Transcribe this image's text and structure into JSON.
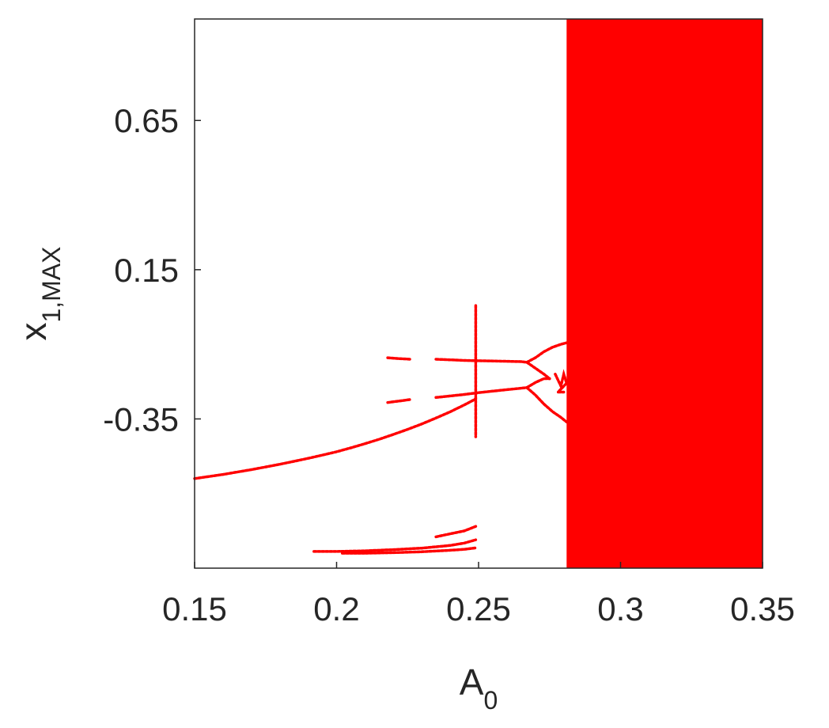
{
  "chart_data": {
    "type": "scatter",
    "title": "",
    "xlabel": {
      "main": "A",
      "sub": "0"
    },
    "ylabel": {
      "main": "x",
      "sub": "1,MAX"
    },
    "xlim": [
      0.15,
      0.35
    ],
    "ylim": [
      -0.85,
      0.99
    ],
    "xticks": [
      0.15,
      0.2,
      0.25,
      0.3,
      0.35
    ],
    "xtick_labels": [
      "0.15",
      "0.2",
      "0.25",
      "0.3",
      "0.35"
    ],
    "yticks": [
      -0.35,
      0.15,
      0.65
    ],
    "ytick_labels": [
      "-0.35",
      "0.15",
      "0.65"
    ],
    "grid": false,
    "legend": "none",
    "color": "#ff0000",
    "chaotic_band": {
      "x": [
        0.281,
        0.35
      ],
      "y": [
        -0.85,
        0.99
      ]
    },
    "series": [
      {
        "points": [
          [
            0.15,
            -0.55
          ],
          [
            0.155,
            -0.543
          ],
          [
            0.16,
            -0.536
          ],
          [
            0.165,
            -0.528
          ],
          [
            0.17,
            -0.52
          ],
          [
            0.175,
            -0.511
          ],
          [
            0.18,
            -0.502
          ],
          [
            0.185,
            -0.492
          ],
          [
            0.19,
            -0.482
          ],
          [
            0.195,
            -0.471
          ],
          [
            0.2,
            -0.46
          ],
          [
            0.205,
            -0.447
          ],
          [
            0.21,
            -0.433
          ],
          [
            0.215,
            -0.418
          ],
          [
            0.22,
            -0.402
          ],
          [
            0.225,
            -0.385
          ],
          [
            0.23,
            -0.367
          ],
          [
            0.235,
            -0.347
          ],
          [
            0.24,
            -0.326
          ],
          [
            0.245,
            -0.303
          ],
          [
            0.249,
            -0.283
          ]
        ]
      },
      {
        "points": [
          [
            0.218,
            -0.145
          ],
          [
            0.222,
            -0.148
          ],
          [
            0.226,
            -0.15
          ]
        ]
      },
      {
        "points": [
          [
            0.218,
            -0.295
          ],
          [
            0.222,
            -0.29
          ],
          [
            0.226,
            -0.285
          ]
        ]
      },
      {
        "points": [
          [
            0.235,
            -0.15
          ],
          [
            0.24,
            -0.152
          ],
          [
            0.245,
            -0.154
          ],
          [
            0.25,
            -0.155
          ],
          [
            0.255,
            -0.156
          ],
          [
            0.26,
            -0.157
          ],
          [
            0.265,
            -0.158
          ],
          [
            0.267,
            -0.16
          ]
        ]
      },
      {
        "points": [
          [
            0.235,
            -0.278
          ],
          [
            0.24,
            -0.273
          ],
          [
            0.245,
            -0.268
          ],
          [
            0.25,
            -0.262
          ],
          [
            0.255,
            -0.257
          ],
          [
            0.26,
            -0.252
          ],
          [
            0.265,
            -0.247
          ],
          [
            0.267,
            -0.245
          ]
        ]
      },
      {
        "points": [
          [
            0.249,
            0.03
          ],
          [
            0.249,
            0.0
          ],
          [
            0.249,
            -0.02
          ],
          [
            0.249,
            -0.15
          ],
          [
            0.249,
            -0.17
          ],
          [
            0.249,
            -0.19
          ],
          [
            0.249,
            -0.21
          ],
          [
            0.249,
            -0.23
          ],
          [
            0.249,
            -0.25
          ],
          [
            0.249,
            -0.27
          ],
          [
            0.249,
            -0.29
          ],
          [
            0.249,
            -0.31
          ],
          [
            0.249,
            -0.33
          ],
          [
            0.249,
            -0.35
          ],
          [
            0.249,
            -0.37
          ],
          [
            0.249,
            -0.39
          ],
          [
            0.249,
            -0.41
          ]
        ]
      },
      {
        "points": [
          [
            0.267,
            -0.16
          ],
          [
            0.27,
            -0.145
          ],
          [
            0.273,
            -0.125
          ],
          [
            0.276,
            -0.11
          ],
          [
            0.279,
            -0.1
          ],
          [
            0.281,
            -0.095
          ]
        ]
      },
      {
        "points": [
          [
            0.267,
            -0.16
          ],
          [
            0.27,
            -0.18
          ],
          [
            0.273,
            -0.2
          ],
          [
            0.275,
            -0.215
          ]
        ]
      },
      {
        "points": [
          [
            0.267,
            -0.245
          ],
          [
            0.27,
            -0.228
          ],
          [
            0.273,
            -0.215
          ],
          [
            0.275,
            -0.215
          ]
        ]
      },
      {
        "points": [
          [
            0.267,
            -0.245
          ],
          [
            0.27,
            -0.27
          ],
          [
            0.273,
            -0.3
          ],
          [
            0.276,
            -0.325
          ],
          [
            0.279,
            -0.345
          ],
          [
            0.281,
            -0.36
          ]
        ]
      },
      {
        "points": [
          [
            0.277,
            -0.2
          ],
          [
            0.278,
            -0.22
          ],
          [
            0.279,
            -0.24
          ],
          [
            0.28,
            -0.2
          ],
          [
            0.281,
            -0.23
          ],
          [
            0.278,
            -0.26
          ],
          [
            0.28,
            -0.26
          ]
        ]
      },
      {
        "points": [
          [
            0.192,
            -0.794
          ],
          [
            0.2,
            -0.794
          ],
          [
            0.21,
            -0.792
          ],
          [
            0.22,
            -0.788
          ],
          [
            0.23,
            -0.783
          ],
          [
            0.24,
            -0.774
          ],
          [
            0.245,
            -0.766
          ],
          [
            0.249,
            -0.755
          ]
        ]
      },
      {
        "points": [
          [
            0.202,
            -0.8
          ],
          [
            0.21,
            -0.8
          ],
          [
            0.22,
            -0.798
          ],
          [
            0.23,
            -0.795
          ],
          [
            0.24,
            -0.79
          ],
          [
            0.245,
            -0.787
          ],
          [
            0.249,
            -0.782
          ]
        ]
      },
      {
        "points": [
          [
            0.235,
            -0.745
          ],
          [
            0.24,
            -0.735
          ],
          [
            0.245,
            -0.725
          ],
          [
            0.249,
            -0.71
          ]
        ]
      }
    ]
  }
}
